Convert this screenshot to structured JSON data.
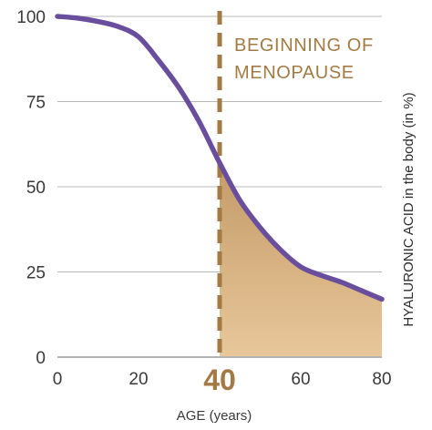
{
  "chart_data": {
    "type": "area",
    "title": "",
    "xlabel": "AGE (years)",
    "ylabel": "HYALURONIC ACID in the body (in %)",
    "xlim": [
      0,
      80
    ],
    "ylim": [
      0,
      100
    ],
    "x_ticks": [
      "0",
      "20",
      "40",
      "60",
      "80"
    ],
    "y_ticks": [
      "0",
      "25",
      "50",
      "75",
      "100"
    ],
    "highlight_tick": "40",
    "grid": "horizontal",
    "series": [
      {
        "x": [
          0,
          5,
          10,
          15,
          20,
          25,
          30,
          35,
          40,
          45,
          50,
          55,
          60,
          65,
          70,
          75,
          80
        ],
        "values": [
          100,
          99.5,
          98.5,
          97,
          94,
          87,
          79,
          69,
          57,
          46,
          38,
          31.5,
          26.5,
          24,
          22,
          19.5,
          17
        ],
        "color": "#6a4e9e"
      }
    ],
    "shaded_region": {
      "x_from": 40,
      "x_to": 80,
      "color_top": "#c49a68",
      "color_bottom": "#e8c79a"
    },
    "annotation": {
      "x": 40,
      "line1": "BEGINNING OF",
      "line2": "MENOPAUSE",
      "color": "#a47a44"
    }
  }
}
